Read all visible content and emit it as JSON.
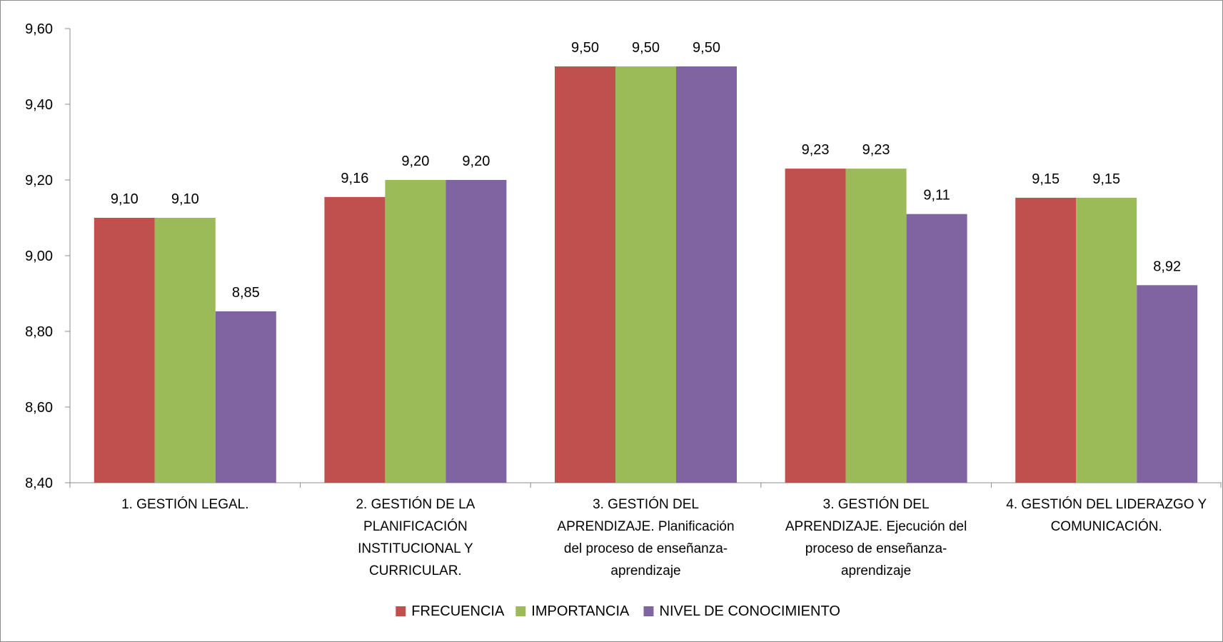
{
  "chart_data": {
    "type": "bar",
    "title": "",
    "xlabel": "",
    "ylabel": "",
    "ylim": [
      8.4,
      9.6
    ],
    "yticks": [
      "8,40",
      "8,60",
      "8,80",
      "9,00",
      "9,20",
      "9,40",
      "9,60"
    ],
    "ytick_values": [
      8.4,
      8.6,
      8.8,
      9.0,
      9.2,
      9.4,
      9.6
    ],
    "grid": false,
    "legend_position": "bottom",
    "categories": [
      [
        "1. GESTIÓN LEGAL."
      ],
      [
        "2. GESTIÓN DE LA",
        "PLANIFICACIÓN",
        "INSTITUCIONAL Y",
        "CURRICULAR."
      ],
      [
        "3. GESTIÓN DEL",
        "APRENDIZAJE. Planificación",
        "del proceso de enseñanza-",
        "aprendizaje"
      ],
      [
        "3. GESTIÓN DEL",
        "APRENDIZAJE. Ejecución del",
        "proceso de enseñanza-",
        "aprendizaje"
      ],
      [
        "4. GESTIÓN DEL LIDERAZGO Y",
        "COMUNICACIÓN."
      ]
    ],
    "series": [
      {
        "name": "FRECUENCIA",
        "color": "#c0504d",
        "values": [
          9.1,
          9.155,
          9.5,
          9.23,
          9.153
        ],
        "labels": [
          "9,10",
          "9,16",
          "9,50",
          "9,23",
          "9,15"
        ]
      },
      {
        "name": "IMPORTANCIA",
        "color": "#9bbb59",
        "values": [
          9.1,
          9.2,
          9.5,
          9.23,
          9.153
        ],
        "labels": [
          "9,10",
          "9,20",
          "9,50",
          "9,23",
          "9,15"
        ]
      },
      {
        "name": "NIVEL DE CONOCIMIENTO",
        "color": "#8064a2",
        "values": [
          8.853,
          9.2,
          9.5,
          9.11,
          8.922
        ],
        "labels": [
          "8,85",
          "9,20",
          "9,50",
          "9,11",
          "8,92"
        ]
      }
    ]
  }
}
